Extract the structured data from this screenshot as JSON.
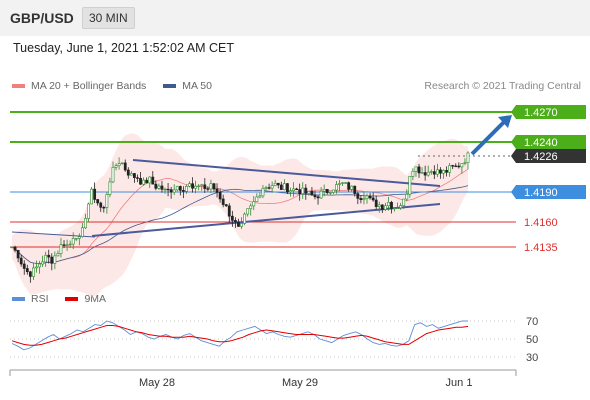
{
  "header": {
    "pair": "GBP/USD",
    "timeframe": "30 MIN"
  },
  "datetime": "Tuesday, June 1, 2021 1:52:02 AM CET",
  "legend": {
    "ma20": {
      "label": "MA 20 + Bollinger Bands",
      "color": "#f08080"
    },
    "ma50": {
      "label": "MA 50",
      "color": "#3f5a8f"
    }
  },
  "credit": "Research © 2021 Trading Central",
  "rsi_legend": {
    "rsi": {
      "label": "RSI",
      "color": "#5b8fd6"
    },
    "ma9": {
      "label": "9MA",
      "color": "#e00000"
    }
  },
  "chart_data": {
    "type": "candlestick",
    "x_labels": [
      "May 28",
      "May 29",
      "Jun 1"
    ],
    "ylim": [
      1.409,
      1.429
    ],
    "last_price": 1.4226,
    "levels": [
      {
        "value": 1.427,
        "label": "1.4270",
        "color": "#4caf1a",
        "style": "resistance",
        "boxed": true
      },
      {
        "value": 1.424,
        "label": "1.4240",
        "color": "#4caf1a",
        "style": "resistance",
        "boxed": true
      },
      {
        "value": 1.4226,
        "label": "1.4226",
        "color": "#333333",
        "style": "current",
        "boxed": true
      },
      {
        "value": 1.419,
        "label": "1.4190",
        "color": "#3e8ee0",
        "style": "pivot",
        "boxed": true
      },
      {
        "value": 1.416,
        "label": "1.4160",
        "color": "#e03030",
        "style": "support",
        "boxed": false
      },
      {
        "value": 1.4135,
        "label": "1.4135",
        "color": "#e03030",
        "style": "support",
        "boxed": false
      }
    ],
    "price_path": [
      1.4135,
      1.4128,
      1.4115,
      1.4108,
      1.4112,
      1.412,
      1.4125,
      1.4122,
      1.413,
      1.414,
      1.4135,
      1.415,
      1.414,
      1.417,
      1.419,
      1.418,
      1.417,
      1.42,
      1.4215,
      1.4222,
      1.4212,
      1.4206,
      1.4205,
      1.4198,
      1.4203,
      1.4196,
      1.4195,
      1.419,
      1.4193,
      1.4196,
      1.4194,
      1.4198,
      1.419,
      1.42,
      1.4192,
      1.4196,
      1.419,
      1.418,
      1.417,
      1.416,
      1.415,
      1.4168,
      1.4175,
      1.4185,
      1.4195,
      1.4196,
      1.4198,
      1.4194,
      1.4195,
      1.4192,
      1.4193,
      1.419,
      1.4188,
      1.4185,
      1.4188,
      1.419,
      1.4194,
      1.4196,
      1.4198,
      1.4195,
      1.4192,
      1.4185,
      1.4188,
      1.418,
      1.4178,
      1.4176,
      1.418,
      1.4175,
      1.4177,
      1.4182,
      1.4215,
      1.4214,
      1.421,
      1.421,
      1.4212,
      1.4209,
      1.421,
      1.4214,
      1.4215,
      1.422,
      1.4226
    ],
    "trendlines": [
      {
        "from": [
          1.422,
          "May 28"
        ],
        "to": [
          1.4195,
          "Jun 1"
        ],
        "color": "#4a5a9a"
      },
      {
        "from": [
          1.4145,
          "May 27"
        ],
        "to": [
          1.4178,
          "Jun 1"
        ],
        "color": "#4a5a9a"
      }
    ],
    "projection_target": 1.427
  },
  "rsi_data": {
    "ticks": [
      "70",
      "50",
      "30"
    ],
    "ylim": [
      20,
      80
    ],
    "rsi": [
      45,
      42,
      38,
      40,
      44,
      48,
      52,
      55,
      50,
      53,
      56,
      60,
      58,
      62,
      66,
      65,
      70,
      68,
      64,
      60,
      55,
      58,
      56,
      52,
      50,
      53,
      55,
      52,
      50,
      54,
      56,
      52,
      48,
      46,
      44,
      42,
      48,
      52,
      58,
      60,
      62,
      64,
      60,
      56,
      58,
      55,
      53,
      52,
      54,
      56,
      58,
      55,
      50,
      48,
      46,
      50,
      54,
      56,
      58,
      55,
      50,
      46,
      44,
      45,
      43,
      42,
      44,
      48,
      66,
      68,
      64,
      66,
      62,
      64,
      66,
      68,
      70,
      70
    ],
    "ma9": [
      48,
      46,
      44,
      43,
      43,
      44,
      46,
      48,
      50,
      51,
      53,
      55,
      57,
      59,
      61,
      63,
      65,
      65,
      64,
      62,
      60,
      58,
      57,
      55,
      54,
      53,
      53,
      52,
      52,
      52,
      53,
      52,
      51,
      50,
      48,
      47,
      47,
      48,
      50,
      52,
      55,
      57,
      59,
      60,
      59,
      58,
      57,
      56,
      55,
      55,
      55,
      55,
      54,
      53,
      52,
      51,
      51,
      52,
      53,
      54,
      53,
      51,
      49,
      47,
      46,
      45,
      44,
      44,
      48,
      52,
      56,
      58,
      60,
      61,
      62,
      63,
      63,
      64
    ]
  }
}
